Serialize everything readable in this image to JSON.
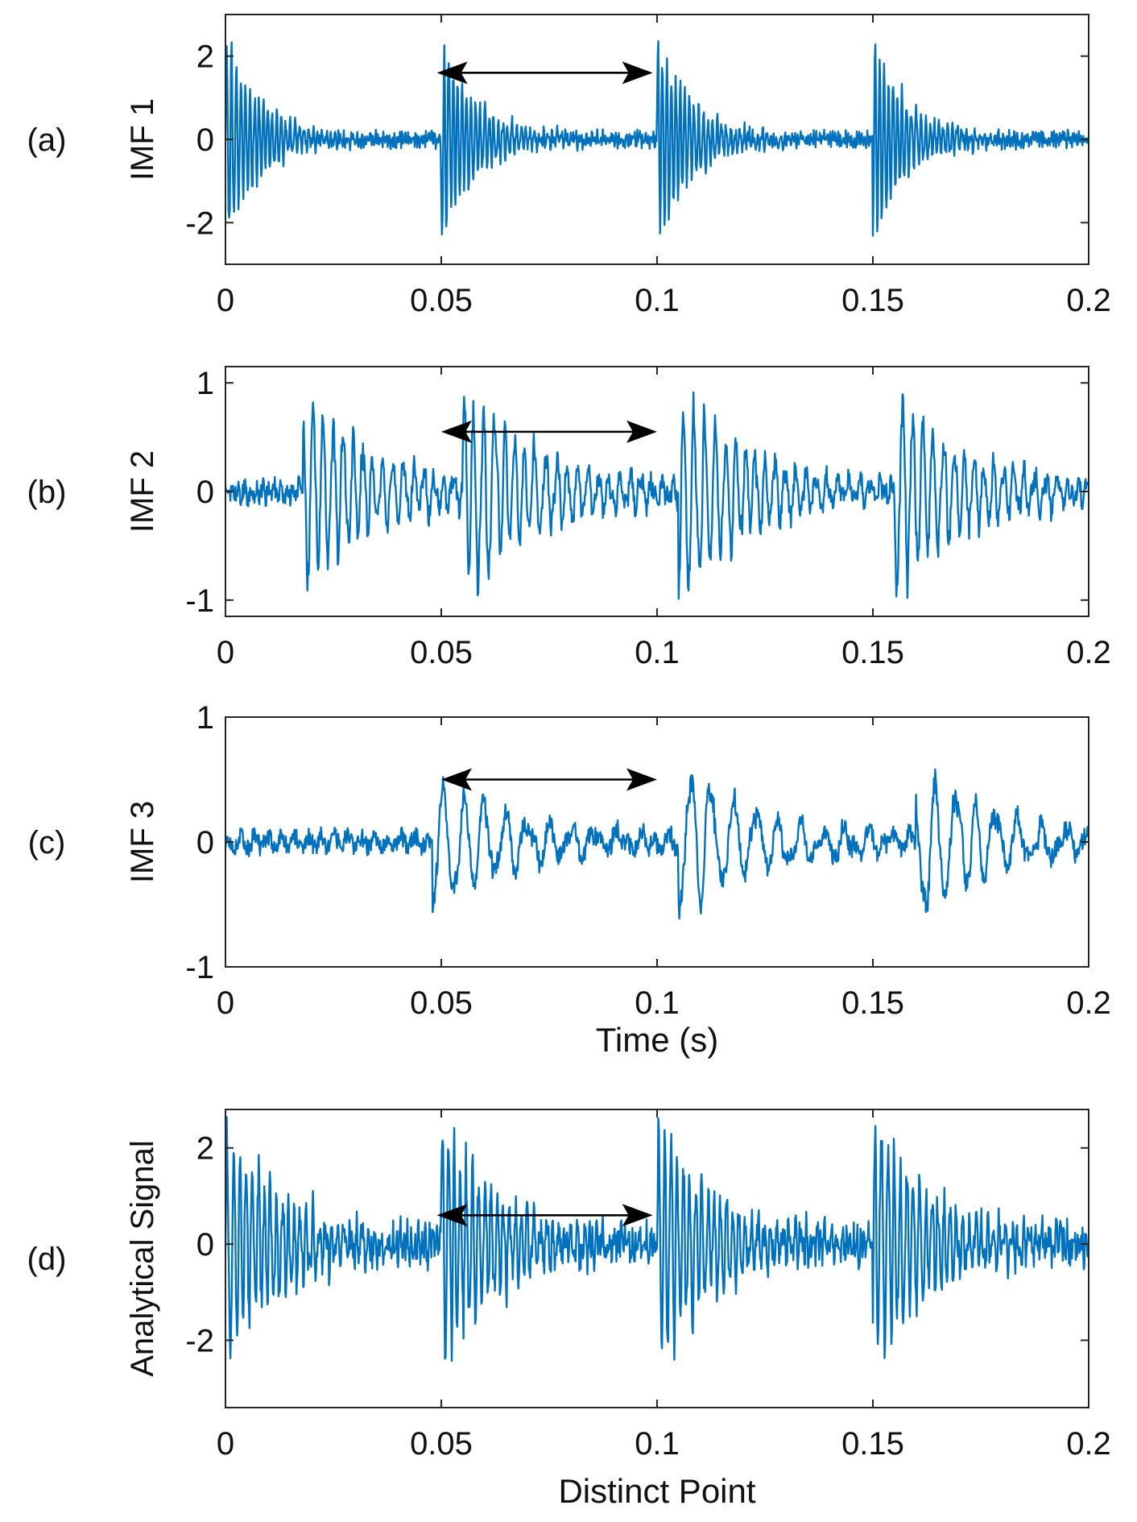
{
  "chart_data": [
    {
      "type": "line",
      "panel_label": "(a)",
      "ylabel": "IMF 1",
      "xlabel": "",
      "xlim": [
        0,
        0.2
      ],
      "ylim": [
        -3,
        3
      ],
      "xticks": [
        0,
        0.05,
        0.1,
        0.15,
        0.2
      ],
      "xtick_labels": [
        "0",
        "0.05",
        "0.1",
        "0.15",
        "0.2"
      ],
      "yticks": [
        -2,
        0,
        2
      ],
      "ytick_labels": [
        "-2",
        "0",
        "2"
      ],
      "series_color": "#0072BD",
      "signal": {
        "bursts": [
          0,
          0.05,
          0.1,
          0.15
        ],
        "burst_amplitude": 2.8,
        "decay_s": 0.008,
        "noise_amplitude": 0.25,
        "freq_hz": 950,
        "seed": 11
      },
      "annotation": {
        "type": "double-arrow",
        "x_from": 0.049,
        "x_to": 0.099,
        "y": 1.6
      }
    },
    {
      "type": "line",
      "panel_label": "(b)",
      "ylabel": "IMF 2",
      "xlabel": "",
      "xlim": [
        0,
        0.2
      ],
      "ylim": [
        -1.15,
        1.15
      ],
      "xticks": [
        0,
        0.05,
        0.1,
        0.15,
        0.2
      ],
      "xtick_labels": [
        "0",
        "0.05",
        "0.1",
        "0.15",
        "0.2"
      ],
      "yticks": [
        -1,
        0,
        1
      ],
      "ytick_labels": [
        "-1",
        "0",
        "1"
      ],
      "series_color": "#0072BD",
      "signal": {
        "bursts": [
          0.018,
          0.055,
          0.105,
          0.155
        ],
        "burst_amplitude": 0.95,
        "decay_s": 0.018,
        "noise_amplitude": 0.15,
        "freq_hz": 420,
        "seed": 23
      },
      "annotation": {
        "type": "double-arrow",
        "x_from": 0.05,
        "x_to": 0.1,
        "y": 0.55
      }
    },
    {
      "type": "line",
      "panel_label": "(c)",
      "ylabel": "IMF 3",
      "xlabel": "Time  (s)",
      "xlim": [
        0,
        0.2
      ],
      "ylim": [
        -1,
        1
      ],
      "xticks": [
        0,
        0.05,
        0.1,
        0.15,
        0.2
      ],
      "xtick_labels": [
        "0",
        "0.05",
        "0.1",
        "0.15",
        "0.2"
      ],
      "yticks": [
        -1,
        0,
        1
      ],
      "ytick_labels": [
        "-1",
        "0",
        "1"
      ],
      "series_color": "#0072BD",
      "signal": {
        "bursts": [
          0.048,
          0.105,
          0.16
        ],
        "burst_amplitude": 0.6,
        "decay_s": 0.02,
        "noise_amplitude": 0.12,
        "freq_hz": 190,
        "seed": 37
      },
      "annotation": {
        "type": "double-arrow",
        "x_from": 0.05,
        "x_to": 0.1,
        "y": 0.5
      }
    },
    {
      "type": "line",
      "panel_label": "(d)",
      "ylabel": "Analytical Signal",
      "xlabel": "Distinct  Point",
      "xlim": [
        0,
        0.2
      ],
      "ylim": [
        -3.4,
        2.8
      ],
      "xticks": [
        0,
        0.05,
        0.1,
        0.15,
        0.2
      ],
      "xtick_labels": [
        "0",
        "0.05",
        "0.1",
        "0.15",
        "0.2"
      ],
      "yticks": [
        -2,
        0,
        2
      ],
      "ytick_labels": [
        "-2",
        "0",
        "2"
      ],
      "series_color": "#0072BD",
      "signal": {
        "bursts": [
          0,
          0.05,
          0.1,
          0.15
        ],
        "burst_amplitude": 2.7,
        "decay_s": 0.014,
        "noise_amplitude": 0.5,
        "freq_hz": 700,
        "seed": 53
      },
      "annotation": {
        "type": "double-arrow",
        "x_from": 0.049,
        "x_to": 0.099,
        "y": 0.6
      }
    }
  ]
}
